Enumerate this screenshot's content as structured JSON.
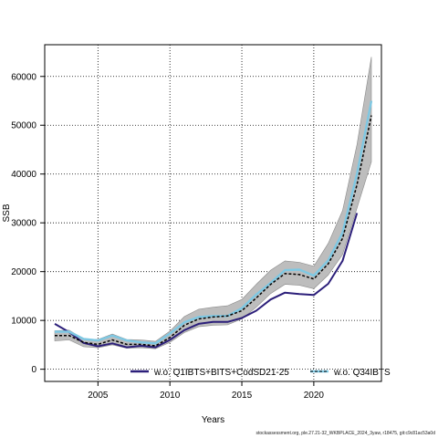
{
  "chart_data": {
    "type": "line",
    "title": "",
    "xlabel": "Years",
    "ylabel": "SSB",
    "xlim": [
      2001.3,
      2024.7
    ],
    "ylim": [
      -2500,
      66500
    ],
    "x_ticks": [
      2005,
      2010,
      2015,
      2020
    ],
    "y_ticks": [
      0,
      10000,
      20000,
      30000,
      40000,
      50000,
      60000
    ],
    "grid": true,
    "legend_position": "bottom",
    "colors": {
      "band": "#bdbdbd",
      "q1ibts": "#2c1f7a",
      "q34ib": "#7ec8e3",
      "central": "#000000"
    },
    "x": [
      2002,
      2003,
      2004,
      2005,
      2006,
      2007,
      2008,
      2009,
      2010,
      2011,
      2012,
      2013,
      2014,
      2015,
      2016,
      2017,
      2018,
      2019,
      2020,
      2021,
      2022,
      2023,
      2024
    ],
    "confidence_band": {
      "lower": [
        5800,
        6000,
        4600,
        4400,
        5000,
        4300,
        4400,
        4200,
        5500,
        7500,
        8700,
        9000,
        9100,
        10300,
        12700,
        15500,
        17400,
        17200,
        16500,
        19300,
        23500,
        33000,
        42500
      ],
      "upper": [
        7900,
        8000,
        6200,
        6100,
        7200,
        6100,
        6000,
        5700,
        7800,
        10800,
        12300,
        12700,
        13000,
        14300,
        17400,
        20300,
        22200,
        21900,
        21100,
        25800,
        32500,
        46000,
        64000
      ]
    },
    "series": [
      {
        "name": "w.o. Q1IBTS+BITS+CodSD21-25",
        "values": [
          9300,
          7600,
          5400,
          4700,
          5300,
          4500,
          4800,
          4500,
          6000,
          8000,
          9300,
          9700,
          9700,
          10500,
          12000,
          14300,
          15700,
          15400,
          15200,
          17500,
          22200,
          32000,
          null
        ]
      },
      {
        "name": "w.o. Q34IBTS",
        "values": [
          7700,
          7700,
          6200,
          5900,
          6900,
          5900,
          5500,
          5300,
          7300,
          9600,
          10700,
          10900,
          10900,
          12500,
          15300,
          17700,
          20300,
          20400,
          19200,
          22300,
          28000,
          40000,
          55000
        ]
      },
      {
        "values": [
          6900,
          6900,
          5500,
          5100,
          6000,
          5100,
          5100,
          4800,
          6500,
          9000,
          10300,
          10700,
          10900,
          12000,
          14600,
          17400,
          19600,
          19400,
          18500,
          21600,
          26800,
          37800,
          52000
        ]
      }
    ]
  },
  "footer_text": "stockassessment.org, ple.27.21-32_WKBPLACE_2024_3yaw, r18475, git:c9c81ac53a0d"
}
